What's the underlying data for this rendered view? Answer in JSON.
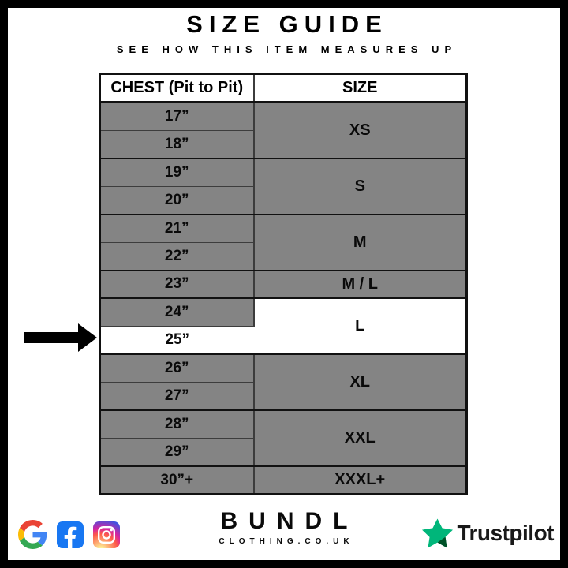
{
  "page": {
    "title": "SIZE GUIDE",
    "subtitle": "SEE HOW THIS ITEM MEASURES UP"
  },
  "table": {
    "headers": [
      "CHEST (Pit to Pit)",
      "SIZE"
    ],
    "groups": [
      {
        "size": "XS",
        "rows": [
          "17”",
          "18”"
        ],
        "highlight": false,
        "highlight_rows": []
      },
      {
        "size": "S",
        "rows": [
          "19”",
          "20”"
        ],
        "highlight": false,
        "highlight_rows": []
      },
      {
        "size": "M",
        "rows": [
          "21”",
          "22”"
        ],
        "highlight": false,
        "highlight_rows": []
      },
      {
        "size": "M / L",
        "rows": [
          "23”"
        ],
        "highlight": false,
        "highlight_rows": []
      },
      {
        "size": "L",
        "rows": [
          "24”",
          "25”"
        ],
        "highlight": true,
        "highlight_rows": [
          "25”"
        ]
      },
      {
        "size": "XL",
        "rows": [
          "26”",
          "27”"
        ],
        "highlight": false,
        "highlight_rows": []
      },
      {
        "size": "XXL",
        "rows": [
          "28”",
          "29”"
        ],
        "highlight": false,
        "highlight_rows": []
      },
      {
        "size": "XXXL+",
        "rows": [
          "30”+"
        ],
        "highlight": false,
        "highlight_rows": []
      }
    ],
    "arrow_target_chest": "25”"
  },
  "footer": {
    "brand": "BUNDL",
    "brand_sub": "CLOTHING.CO.UK",
    "trustpilot_label": "Trustpilot",
    "social_icons": [
      "google-icon",
      "facebook-icon",
      "instagram-icon"
    ]
  },
  "colors": {
    "row_gray": "#848484",
    "highlight_white": "#ffffff",
    "border_dark": "#111111",
    "divider_gray": "#3c3c3c",
    "trustpilot_green": "#00B67A",
    "trustpilot_green_dark": "#005128",
    "facebook_blue": "#1877F2",
    "google_blue": "#4285F4",
    "google_red": "#EA4335",
    "google_yellow": "#FBBC05",
    "google_green": "#34A853"
  },
  "chart_data": {
    "type": "table",
    "title": "SIZE GUIDE",
    "subtitle": "SEE HOW THIS ITEM MEASURES UP",
    "columns": [
      "CHEST (Pit to Pit)",
      "SIZE"
    ],
    "rows": [
      [
        "17”",
        "XS"
      ],
      [
        "18”",
        "XS"
      ],
      [
        "19”",
        "S"
      ],
      [
        "20”",
        "S"
      ],
      [
        "21”",
        "M"
      ],
      [
        "22”",
        "M"
      ],
      [
        "23”",
        "M / L"
      ],
      [
        "24”",
        "L"
      ],
      [
        "25”",
        "L"
      ],
      [
        "26”",
        "XL"
      ],
      [
        "27”",
        "XL"
      ],
      [
        "28”",
        "XXL"
      ],
      [
        "29”",
        "XXL"
      ],
      [
        "30”+",
        "XXXL+"
      ]
    ],
    "highlighted_row": {
      "chest": "25”",
      "size": "L"
    },
    "legend_position": "none",
    "grid": true
  }
}
